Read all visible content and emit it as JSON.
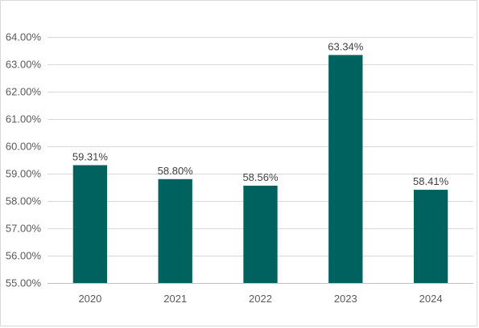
{
  "chart_data": {
    "type": "bar",
    "title": "",
    "xlabel": "",
    "ylabel": "",
    "categories": [
      "2020",
      "2021",
      "2022",
      "2023",
      "2024"
    ],
    "values": [
      59.31,
      58.8,
      58.56,
      63.34,
      58.41
    ],
    "value_labels": [
      "59.31%",
      "58.80%",
      "58.56%",
      "63.34%",
      "58.41%"
    ],
    "ylim": [
      55,
      64
    ],
    "yticks": [
      55,
      56,
      57,
      58,
      59,
      60,
      61,
      62,
      63,
      64
    ],
    "ytick_labels": [
      "55.00%",
      "56.00%",
      "57.00%",
      "58.00%",
      "59.00%",
      "60.00%",
      "61.00%",
      "62.00%",
      "63.00%",
      "64.00%"
    ],
    "grid": true,
    "legend": "none",
    "bar_color": "#00625e"
  }
}
